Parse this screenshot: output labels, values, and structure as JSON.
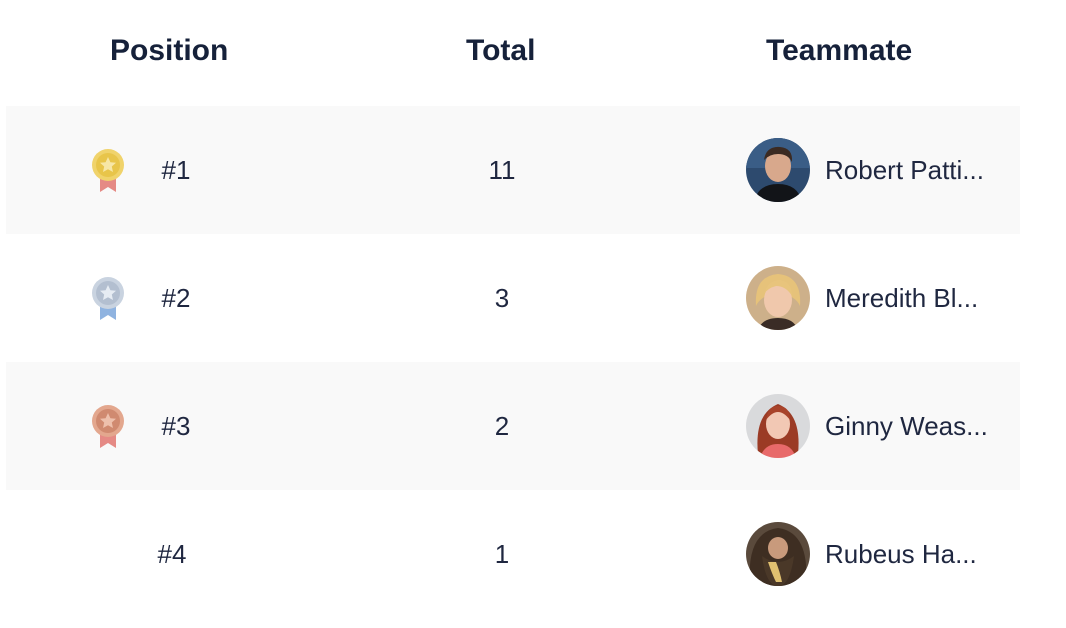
{
  "header": {
    "position": "Position",
    "total": "Total",
    "teammate": "Teammate"
  },
  "rows": [
    {
      "position": "#1",
      "total": "11",
      "name": "Robert Patti...",
      "medal": "gold-medal-icon",
      "medal_color": "#e8c54a",
      "ribbon_color": "#e58a85"
    },
    {
      "position": "#2",
      "total": "3",
      "name": "Meredith Bl...",
      "medal": "silver-medal-icon",
      "medal_color": "#b8c4d4",
      "ribbon_color": "#8fb3e0"
    },
    {
      "position": "#3",
      "total": "2",
      "name": "Ginny Weas...",
      "medal": "bronze-medal-icon",
      "medal_color": "#d9937a",
      "ribbon_color": "#e58a85"
    },
    {
      "position": "#4",
      "total": "1",
      "name": "Rubeus Ha...",
      "medal": null
    }
  ]
}
